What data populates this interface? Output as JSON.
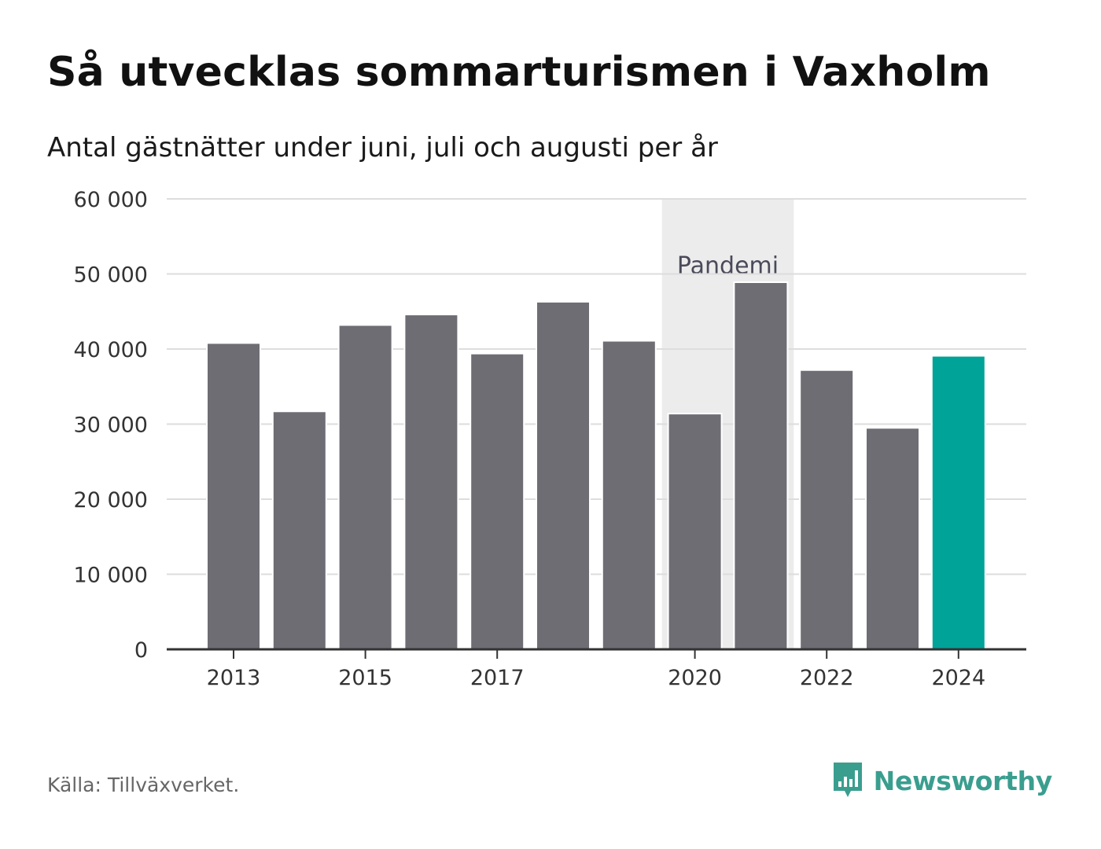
{
  "header": {
    "title": "Så utvecklas sommarturismen i Vaxholm",
    "subtitle": "Antal gästnätter under juni, juli och augusti per år"
  },
  "footer": {
    "source": "Källa: Tillväxverket.",
    "brand": "Newsworthy"
  },
  "colors": {
    "bar": "#6e6d74",
    "highlight": "#00a398",
    "band": "#ececec",
    "grid": "#dddddd",
    "axis": "#333333",
    "brand": "#3a9e8f"
  },
  "chart_data": {
    "type": "bar",
    "title": "Så utvecklas sommarturismen i Vaxholm",
    "subtitle": "Antal gästnätter under juni, juli och augusti per år",
    "xlabel": "",
    "ylabel": "",
    "categories": [
      2013,
      2014,
      2015,
      2016,
      2017,
      2018,
      2019,
      2020,
      2021,
      2022,
      2023,
      2024
    ],
    "x_tick_labels": [
      "2013",
      "",
      "2015",
      "",
      "2017",
      "",
      "",
      "2020",
      "",
      "2022",
      "",
      "2024"
    ],
    "values": [
      40800,
      31700,
      43200,
      44600,
      39400,
      46300,
      41100,
      31400,
      48900,
      37200,
      29500,
      39100
    ],
    "highlight_category": 2024,
    "ylim": [
      0,
      60000
    ],
    "y_ticks": [
      0,
      10000,
      20000,
      30000,
      40000,
      50000,
      60000
    ],
    "y_tick_labels": [
      "0",
      "10 000",
      "20 000",
      "30 000",
      "40 000",
      "50 000",
      "60 000"
    ],
    "grid": true,
    "annotation": {
      "label": "Pandemi",
      "from_category": 2020,
      "to_category": 2021
    }
  }
}
